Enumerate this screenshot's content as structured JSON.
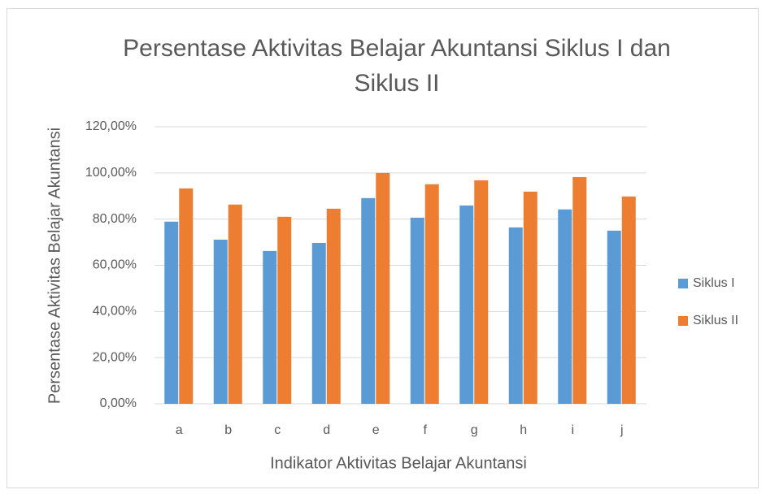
{
  "chart_data": {
    "type": "bar",
    "title": "Persentase Aktivitas Belajar Akuntansi Siklus I dan Siklus II",
    "x_label": "Indikator Aktivitas Belajar Akuntansi",
    "y_label": "Persentase Aktivitas Belajar Akuntansi",
    "categories": [
      "a",
      "b",
      "c",
      "d",
      "e",
      "f",
      "g",
      "h",
      "i",
      "j"
    ],
    "series": [
      {
        "name": "Siklus I",
        "color": "#5b9bd5",
        "values": [
          78.9,
          71.1,
          66.2,
          69.7,
          89.1,
          80.6,
          85.9,
          76.4,
          84.2,
          75.0
        ]
      },
      {
        "name": "Siklus II",
        "color": "#ed7d31",
        "values": [
          93.3,
          86.3,
          81.0,
          84.5,
          100.0,
          95.1,
          96.8,
          91.9,
          98.2,
          89.8
        ]
      }
    ],
    "ylim": [
      0,
      120
    ],
    "yticks": [
      {
        "value": 0,
        "label": "0,00%"
      },
      {
        "value": 20,
        "label": "20,00%"
      },
      {
        "value": 40,
        "label": "40,00%"
      },
      {
        "value": 60,
        "label": "60,00%"
      },
      {
        "value": 80,
        "label": "80,00%"
      },
      {
        "value": 100,
        "label": "100,00%"
      },
      {
        "value": 120,
        "label": "120,00%"
      }
    ],
    "grid": true,
    "legend": "right"
  }
}
